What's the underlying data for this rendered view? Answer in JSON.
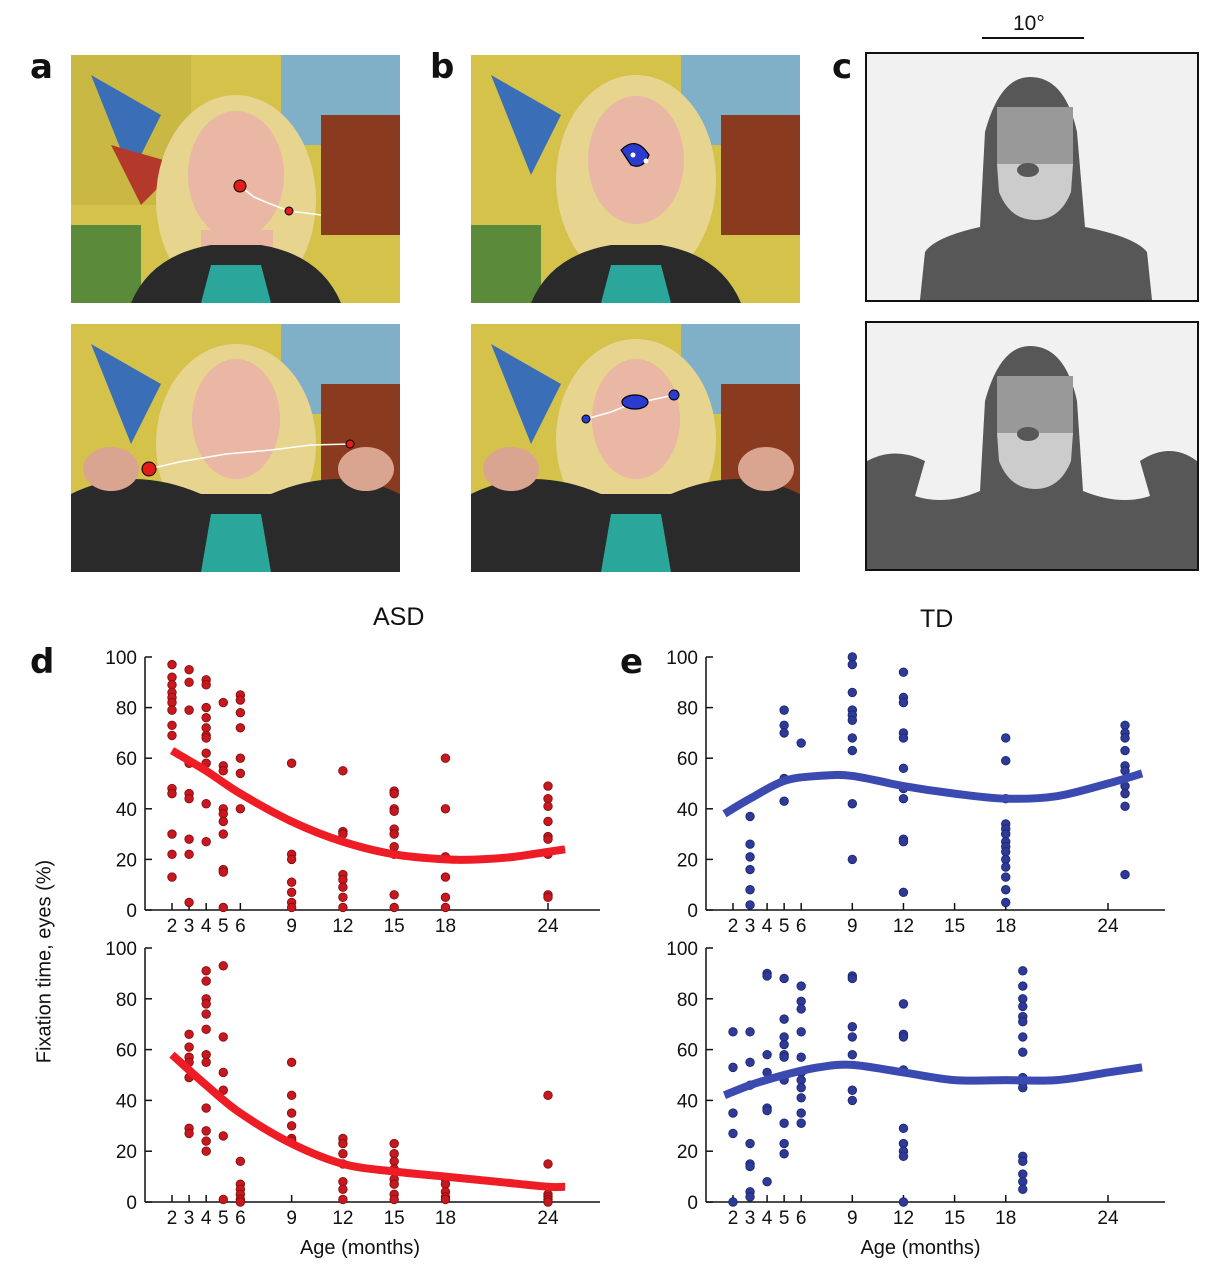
{
  "panels": {
    "a": "a",
    "b": "b",
    "c": "c",
    "d": "d",
    "e": "e"
  },
  "scale_bar_label": "10°",
  "column_titles": {
    "asd": "ASD",
    "td": "TD"
  },
  "shared_ylabel": "Fixation time, eyes (%)",
  "colors": {
    "asd_point": "#c8171d",
    "asd_curve": "#ee1c24",
    "td_point": "#2e3a96",
    "td_curve": "#3a4ab0",
    "map_dark": "#575757",
    "map_mid": "#999999",
    "map_light": "#cccccc",
    "map_bg": "#f1f1f1"
  },
  "chart_data": [
    {
      "id": "d-top",
      "type": "scatter",
      "group": "ASD",
      "xlabel": "",
      "ylabel": "",
      "xlim": [
        0,
        27
      ],
      "ylim": [
        0,
        100
      ],
      "xticks": [
        2,
        3,
        4,
        5,
        6,
        9,
        12,
        15,
        18,
        24
      ],
      "yticks": [
        0,
        20,
        40,
        60,
        80,
        100
      ],
      "points": [
        [
          2,
          97
        ],
        [
          2,
          92
        ],
        [
          2,
          89
        ],
        [
          2,
          86
        ],
        [
          2,
          84
        ],
        [
          2,
          82
        ],
        [
          2,
          79
        ],
        [
          2,
          73
        ],
        [
          2,
          69
        ],
        [
          2,
          48
        ],
        [
          2,
          46
        ],
        [
          2,
          30
        ],
        [
          2,
          22
        ],
        [
          2,
          13
        ],
        [
          3,
          95
        ],
        [
          3,
          90
        ],
        [
          3,
          79
        ],
        [
          3,
          58
        ],
        [
          3,
          46
        ],
        [
          3,
          44
        ],
        [
          3,
          28
        ],
        [
          3,
          22
        ],
        [
          3,
          3
        ],
        [
          4,
          91
        ],
        [
          4,
          89
        ],
        [
          4,
          80
        ],
        [
          4,
          76
        ],
        [
          4,
          72
        ],
        [
          4,
          69
        ],
        [
          4,
          68
        ],
        [
          4,
          62
        ],
        [
          4,
          58
        ],
        [
          4,
          42
        ],
        [
          4,
          27
        ],
        [
          5,
          82
        ],
        [
          5,
          57
        ],
        [
          5,
          55
        ],
        [
          5,
          40
        ],
        [
          5,
          38
        ],
        [
          5,
          35
        ],
        [
          5,
          30
        ],
        [
          5,
          16
        ],
        [
          5,
          15
        ],
        [
          5,
          1
        ],
        [
          6,
          85
        ],
        [
          6,
          83
        ],
        [
          6,
          78
        ],
        [
          6,
          72
        ],
        [
          6,
          60
        ],
        [
          6,
          54
        ],
        [
          6,
          40
        ],
        [
          9,
          58
        ],
        [
          9,
          22
        ],
        [
          9,
          20
        ],
        [
          9,
          11
        ],
        [
          9,
          7
        ],
        [
          9,
          3
        ],
        [
          9,
          1
        ],
        [
          12,
          55
        ],
        [
          12,
          31
        ],
        [
          12,
          30
        ],
        [
          12,
          14
        ],
        [
          12,
          12
        ],
        [
          12,
          9
        ],
        [
          12,
          5
        ],
        [
          12,
          1
        ],
        [
          15,
          47
        ],
        [
          15,
          46
        ],
        [
          15,
          40
        ],
        [
          15,
          39
        ],
        [
          15,
          32
        ],
        [
          15,
          30
        ],
        [
          15,
          25
        ],
        [
          15,
          22
        ],
        [
          15,
          6
        ],
        [
          15,
          1
        ],
        [
          18,
          60
        ],
        [
          18,
          40
        ],
        [
          18,
          21
        ],
        [
          18,
          13
        ],
        [
          18,
          5
        ],
        [
          18,
          1
        ],
        [
          24,
          49
        ],
        [
          24,
          44
        ],
        [
          24,
          41
        ],
        [
          24,
          35
        ],
        [
          24,
          29
        ],
        [
          24,
          28
        ],
        [
          24,
          22
        ],
        [
          24,
          6
        ],
        [
          24,
          5
        ]
      ],
      "fit": [
        [
          2,
          63
        ],
        [
          4,
          55
        ],
        [
          6,
          46
        ],
        [
          9,
          35
        ],
        [
          12,
          27
        ],
        [
          15,
          22
        ],
        [
          18,
          20
        ],
        [
          20,
          20
        ],
        [
          22,
          21
        ],
        [
          24,
          23
        ],
        [
          25,
          24
        ]
      ]
    },
    {
      "id": "d-bottom",
      "type": "scatter",
      "group": "ASD",
      "xlabel": "Age (months)",
      "ylabel": "",
      "xlim": [
        0,
        27
      ],
      "ylim": [
        0,
        100
      ],
      "xticks": [
        2,
        3,
        4,
        5,
        6,
        9,
        12,
        15,
        18,
        24
      ],
      "yticks": [
        0,
        20,
        40,
        60,
        80,
        100
      ],
      "points": [
        [
          3,
          66
        ],
        [
          3,
          61
        ],
        [
          3,
          57
        ],
        [
          3,
          55
        ],
        [
          3,
          49
        ],
        [
          3,
          29
        ],
        [
          3,
          27
        ],
        [
          4,
          91
        ],
        [
          4,
          87
        ],
        [
          4,
          80
        ],
        [
          4,
          78
        ],
        [
          4,
          74
        ],
        [
          4,
          68
        ],
        [
          4,
          58
        ],
        [
          4,
          55
        ],
        [
          4,
          37
        ],
        [
          4,
          28
        ],
        [
          4,
          24
        ],
        [
          4,
          20
        ],
        [
          5,
          93
        ],
        [
          5,
          65
        ],
        [
          5,
          51
        ],
        [
          5,
          44
        ],
        [
          5,
          26
        ],
        [
          5,
          1
        ],
        [
          6,
          16
        ],
        [
          6,
          7
        ],
        [
          6,
          5
        ],
        [
          6,
          3
        ],
        [
          6,
          1
        ],
        [
          6,
          0
        ],
        [
          9,
          55
        ],
        [
          9,
          42
        ],
        [
          9,
          35
        ],
        [
          9,
          30
        ],
        [
          9,
          25
        ],
        [
          9,
          24
        ],
        [
          12,
          25
        ],
        [
          12,
          23
        ],
        [
          12,
          19
        ],
        [
          12,
          15
        ],
        [
          12,
          8
        ],
        [
          12,
          5
        ],
        [
          12,
          1
        ],
        [
          15,
          23
        ],
        [
          15,
          19
        ],
        [
          15,
          16
        ],
        [
          15,
          13
        ],
        [
          15,
          12
        ],
        [
          15,
          9
        ],
        [
          15,
          7
        ],
        [
          15,
          3
        ],
        [
          15,
          1
        ],
        [
          18,
          9
        ],
        [
          18,
          7
        ],
        [
          18,
          4
        ],
        [
          18,
          2
        ],
        [
          18,
          1
        ],
        [
          24,
          42
        ],
        [
          24,
          15
        ],
        [
          24,
          3
        ],
        [
          24,
          2
        ],
        [
          24,
          1
        ],
        [
          24,
          0
        ]
      ],
      "fit": [
        [
          2,
          58
        ],
        [
          4,
          46
        ],
        [
          6,
          35
        ],
        [
          9,
          23
        ],
        [
          12,
          15
        ],
        [
          15,
          12
        ],
        [
          18,
          10
        ],
        [
          21,
          8
        ],
        [
          24,
          6
        ],
        [
          25,
          6
        ]
      ]
    },
    {
      "id": "e-top",
      "type": "scatter",
      "group": "TD",
      "xlabel": "",
      "ylabel": "",
      "xlim": [
        0,
        27
      ],
      "ylim": [
        0,
        100
      ],
      "xticks": [
        2,
        3,
        4,
        5,
        6,
        9,
        12,
        15,
        18,
        24
      ],
      "yticks": [
        0,
        20,
        40,
        60,
        80,
        100
      ],
      "points": [
        [
          3,
          37
        ],
        [
          3,
          26
        ],
        [
          3,
          21
        ],
        [
          3,
          16
        ],
        [
          3,
          8
        ],
        [
          3,
          2
        ],
        [
          5,
          79
        ],
        [
          5,
          73
        ],
        [
          5,
          70
        ],
        [
          5,
          52
        ],
        [
          5,
          43
        ],
        [
          6,
          66
        ],
        [
          9,
          100
        ],
        [
          9,
          97
        ],
        [
          9,
          86
        ],
        [
          9,
          79
        ],
        [
          9,
          77
        ],
        [
          9,
          75
        ],
        [
          9,
          68
        ],
        [
          9,
          63
        ],
        [
          9,
          42
        ],
        [
          9,
          20
        ],
        [
          12,
          94
        ],
        [
          12,
          84
        ],
        [
          12,
          82
        ],
        [
          12,
          70
        ],
        [
          12,
          68
        ],
        [
          12,
          56
        ],
        [
          12,
          48
        ],
        [
          12,
          44
        ],
        [
          12,
          28
        ],
        [
          12,
          27
        ],
        [
          12,
          7
        ],
        [
          18,
          68
        ],
        [
          18,
          59
        ],
        [
          18,
          44
        ],
        [
          18,
          34
        ],
        [
          18,
          32
        ],
        [
          18,
          30
        ],
        [
          18,
          27
        ],
        [
          18,
          25
        ],
        [
          18,
          23
        ],
        [
          18,
          20
        ],
        [
          18,
          17
        ],
        [
          18,
          13
        ],
        [
          18,
          8
        ],
        [
          18,
          3
        ],
        [
          25,
          73
        ],
        [
          25,
          70
        ],
        [
          25,
          68
        ],
        [
          25,
          63
        ],
        [
          25,
          57
        ],
        [
          25,
          55
        ],
        [
          25,
          49
        ],
        [
          25,
          46
        ],
        [
          25,
          41
        ],
        [
          25,
          14
        ]
      ],
      "fit": [
        [
          1.5,
          38
        ],
        [
          3,
          44
        ],
        [
          5,
          51
        ],
        [
          7,
          53
        ],
        [
          9,
          53
        ],
        [
          12,
          49
        ],
        [
          15,
          46
        ],
        [
          18,
          44
        ],
        [
          21,
          45
        ],
        [
          24,
          50
        ],
        [
          26,
          54
        ]
      ]
    },
    {
      "id": "e-bottom",
      "type": "scatter",
      "group": "TD",
      "xlabel": "Age (months)",
      "ylabel": "",
      "xlim": [
        0,
        27
      ],
      "ylim": [
        0,
        100
      ],
      "xticks": [
        2,
        3,
        4,
        5,
        6,
        9,
        12,
        15,
        18,
        24
      ],
      "yticks": [
        0,
        20,
        40,
        60,
        80,
        100
      ],
      "points": [
        [
          2,
          67
        ],
        [
          2,
          53
        ],
        [
          2,
          35
        ],
        [
          2,
          27
        ],
        [
          2,
          0
        ],
        [
          3,
          67
        ],
        [
          3,
          55
        ],
        [
          3,
          46
        ],
        [
          3,
          23
        ],
        [
          3,
          15
        ],
        [
          3,
          14
        ],
        [
          3,
          4
        ],
        [
          3,
          2
        ],
        [
          4,
          90
        ],
        [
          4,
          89
        ],
        [
          4,
          58
        ],
        [
          4,
          51
        ],
        [
          4,
          37
        ],
        [
          4,
          36
        ],
        [
          4,
          8
        ],
        [
          5,
          88
        ],
        [
          5,
          72
        ],
        [
          5,
          65
        ],
        [
          5,
          62
        ],
        [
          5,
          58
        ],
        [
          5,
          57
        ],
        [
          5,
          48
        ],
        [
          5,
          31
        ],
        [
          5,
          23
        ],
        [
          5,
          19
        ],
        [
          6,
          85
        ],
        [
          6,
          79
        ],
        [
          6,
          76
        ],
        [
          6,
          67
        ],
        [
          6,
          57
        ],
        [
          6,
          51
        ],
        [
          6,
          48
        ],
        [
          6,
          45
        ],
        [
          6,
          41
        ],
        [
          6,
          35
        ],
        [
          6,
          31
        ],
        [
          9,
          89
        ],
        [
          9,
          88
        ],
        [
          9,
          69
        ],
        [
          9,
          65
        ],
        [
          9,
          58
        ],
        [
          9,
          44
        ],
        [
          9,
          40
        ],
        [
          12,
          78
        ],
        [
          12,
          66
        ],
        [
          12,
          65
        ],
        [
          12,
          52
        ],
        [
          12,
          29
        ],
        [
          12,
          23
        ],
        [
          12,
          20
        ],
        [
          12,
          18
        ],
        [
          12,
          0
        ],
        [
          19,
          91
        ],
        [
          19,
          85
        ],
        [
          19,
          80
        ],
        [
          19,
          77
        ],
        [
          19,
          73
        ],
        [
          19,
          71
        ],
        [
          19,
          65
        ],
        [
          19,
          59
        ],
        [
          19,
          49
        ],
        [
          19,
          47
        ],
        [
          19,
          45
        ],
        [
          19,
          18
        ],
        [
          19,
          16
        ],
        [
          19,
          11
        ],
        [
          19,
          8
        ],
        [
          19,
          5
        ]
      ],
      "fit": [
        [
          1.5,
          42
        ],
        [
          3,
          46
        ],
        [
          5,
          50
        ],
        [
          7,
          53
        ],
        [
          9,
          54
        ],
        [
          12,
          51
        ],
        [
          15,
          48
        ],
        [
          18,
          48
        ],
        [
          21,
          48
        ],
        [
          24,
          51
        ],
        [
          26,
          53
        ]
      ]
    }
  ]
}
